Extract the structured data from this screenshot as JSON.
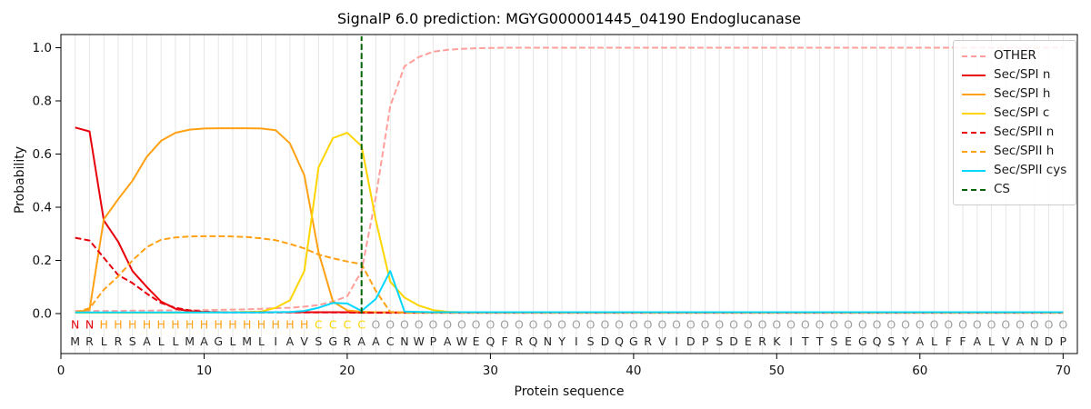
{
  "chart_data": {
    "type": "line",
    "title": "SignalP 6.0 prediction: MGYG000001445_04190 Endoglucanase",
    "xlabel": "Protein sequence",
    "ylabel": "Probability",
    "xlim": [
      0,
      71
    ],
    "ylim": [
      -0.15,
      1.05
    ],
    "x_ticks": [
      0,
      10,
      20,
      30,
      40,
      50,
      60,
      70
    ],
    "y_ticks": [
      0.0,
      0.2,
      0.4,
      0.6,
      0.8,
      1.0
    ],
    "grid": "vertical line at every residue position, light gray",
    "legend_position": "upper right",
    "series": [
      {
        "label": "OTHER",
        "color": "#ff9f9b",
        "style": "dashed",
        "values": [
          0.01,
          0.01,
          0.01,
          0.01,
          0.011,
          0.011,
          0.012,
          0.012,
          0.013,
          0.013,
          0.014,
          0.015,
          0.016,
          0.018,
          0.02,
          0.022,
          0.026,
          0.032,
          0.045,
          0.065,
          0.16,
          0.44,
          0.78,
          0.93,
          0.965,
          0.985,
          0.992,
          0.996,
          0.998,
          0.999,
          1.0,
          1.0,
          1.0,
          1.0,
          1.0,
          1.0,
          1.0,
          1.0,
          1.0,
          1.0,
          1.0,
          1.0,
          1.0,
          1.0,
          1.0,
          1.0,
          1.0,
          1.0,
          1.0,
          1.0,
          1.0,
          1.0,
          1.0,
          1.0,
          1.0,
          1.0,
          1.0,
          1.0,
          1.0,
          1.0,
          1.0,
          1.0,
          1.0,
          1.0,
          1.0,
          1.0,
          1.0,
          1.0,
          1.0,
          1.0
        ]
      },
      {
        "label": "Sec/SPI n",
        "color": "#e8000b",
        "style": "solid",
        "values": [
          0.7,
          0.685,
          0.35,
          0.27,
          0.16,
          0.1,
          0.045,
          0.018,
          0.009,
          0.006,
          0.005,
          0.005,
          0.005,
          0.005,
          0.005,
          0.005,
          0.005,
          0.005,
          0.005,
          0.005,
          0.004,
          0.004,
          0.004,
          0.004,
          0.004,
          0.004,
          0.004,
          0.004,
          0.004,
          0.004,
          0.004,
          0.004,
          0.004,
          0.004,
          0.004,
          0.004,
          0.004,
          0.004,
          0.004,
          0.004,
          0.004,
          0.004,
          0.004,
          0.004,
          0.004,
          0.004,
          0.004,
          0.004,
          0.004,
          0.004,
          0.004,
          0.004,
          0.004,
          0.004,
          0.004,
          0.004,
          0.004,
          0.004,
          0.004,
          0.004,
          0.004,
          0.004,
          0.004,
          0.004,
          0.004,
          0.004,
          0.004,
          0.004,
          0.004,
          0.004
        ]
      },
      {
        "label": "Sec/SPI h",
        "color": "#ffa113",
        "style": "solid",
        "values": [
          0.004,
          0.015,
          0.355,
          0.43,
          0.5,
          0.59,
          0.65,
          0.68,
          0.692,
          0.696,
          0.697,
          0.697,
          0.697,
          0.696,
          0.69,
          0.64,
          0.52,
          0.23,
          0.045,
          0.012,
          0.007,
          0.005,
          0.004,
          0.004,
          0.004,
          0.004,
          0.004,
          0.004,
          0.004,
          0.004,
          0.004,
          0.004,
          0.004,
          0.004,
          0.004,
          0.004,
          0.004,
          0.004,
          0.004,
          0.004,
          0.004,
          0.004,
          0.004,
          0.004,
          0.004,
          0.004,
          0.004,
          0.004,
          0.004,
          0.004,
          0.004,
          0.004,
          0.004,
          0.004,
          0.004,
          0.004,
          0.004,
          0.004,
          0.004,
          0.004,
          0.004,
          0.004,
          0.004,
          0.004,
          0.004,
          0.004,
          0.004,
          0.004,
          0.004,
          0.004
        ]
      },
      {
        "label": "Sec/SPI c",
        "color": "#ffd500",
        "style": "solid",
        "values": [
          0.003,
          0.003,
          0.003,
          0.003,
          0.003,
          0.003,
          0.003,
          0.003,
          0.004,
          0.004,
          0.004,
          0.005,
          0.006,
          0.008,
          0.022,
          0.05,
          0.16,
          0.55,
          0.66,
          0.68,
          0.63,
          0.35,
          0.12,
          0.06,
          0.03,
          0.013,
          0.007,
          0.005,
          0.004,
          0.004,
          0.004,
          0.004,
          0.004,
          0.004,
          0.004,
          0.004,
          0.004,
          0.004,
          0.004,
          0.004,
          0.004,
          0.004,
          0.004,
          0.004,
          0.004,
          0.004,
          0.004,
          0.004,
          0.004,
          0.004,
          0.004,
          0.004,
          0.004,
          0.004,
          0.004,
          0.004,
          0.004,
          0.004,
          0.004,
          0.004,
          0.004,
          0.004,
          0.004,
          0.004,
          0.004,
          0.004,
          0.004,
          0.004,
          0.004,
          0.004
        ]
      },
      {
        "label": "Sec/SPII n",
        "color": "#e8000b",
        "style": "dashed",
        "values": [
          0.285,
          0.275,
          0.21,
          0.145,
          0.115,
          0.075,
          0.04,
          0.022,
          0.012,
          0.007,
          0.005,
          0.004,
          0.004,
          0.004,
          0.004,
          0.004,
          0.004,
          0.004,
          0.004,
          0.004,
          0.003,
          0.003,
          0.003,
          0.003,
          0.003,
          0.003,
          0.003,
          0.003,
          0.003,
          0.003,
          0.003,
          0.003,
          0.003,
          0.003,
          0.003,
          0.003,
          0.003,
          0.003,
          0.003,
          0.003,
          0.003,
          0.003,
          0.003,
          0.003,
          0.003,
          0.003,
          0.003,
          0.003,
          0.003,
          0.003,
          0.003,
          0.003,
          0.003,
          0.003,
          0.003,
          0.003,
          0.003,
          0.003,
          0.003,
          0.003,
          0.003,
          0.003,
          0.003,
          0.003,
          0.003,
          0.003,
          0.003,
          0.003,
          0.003,
          0.003
        ]
      },
      {
        "label": "Sec/SPII h",
        "color": "#ffa113",
        "style": "dashed",
        "values": [
          0.004,
          0.02,
          0.09,
          0.14,
          0.2,
          0.25,
          0.278,
          0.286,
          0.29,
          0.291,
          0.291,
          0.29,
          0.288,
          0.283,
          0.276,
          0.262,
          0.245,
          0.222,
          0.208,
          0.196,
          0.186,
          0.085,
          0.006,
          0.003,
          0.003,
          0.003,
          0.003,
          0.003,
          0.003,
          0.003,
          0.003,
          0.003,
          0.003,
          0.003,
          0.003,
          0.003,
          0.003,
          0.003,
          0.003,
          0.003,
          0.003,
          0.003,
          0.003,
          0.003,
          0.003,
          0.003,
          0.003,
          0.003,
          0.003,
          0.003,
          0.003,
          0.003,
          0.003,
          0.003,
          0.003,
          0.003,
          0.003,
          0.003,
          0.003,
          0.003,
          0.003,
          0.003,
          0.003,
          0.003,
          0.003,
          0.003,
          0.003,
          0.003,
          0.003,
          0.003
        ]
      },
      {
        "label": "Sec/SPII cys",
        "color": "#00d7ff",
        "style": "solid",
        "values": [
          0.004,
          0.004,
          0.004,
          0.004,
          0.004,
          0.004,
          0.004,
          0.004,
          0.004,
          0.004,
          0.004,
          0.004,
          0.004,
          0.004,
          0.005,
          0.006,
          0.01,
          0.022,
          0.04,
          0.038,
          0.01,
          0.055,
          0.16,
          0.008,
          0.006,
          0.005,
          0.005,
          0.005,
          0.005,
          0.005,
          0.005,
          0.005,
          0.005,
          0.005,
          0.005,
          0.005,
          0.005,
          0.005,
          0.005,
          0.005,
          0.005,
          0.005,
          0.005,
          0.005,
          0.005,
          0.005,
          0.005,
          0.005,
          0.005,
          0.005,
          0.005,
          0.005,
          0.005,
          0.005,
          0.005,
          0.005,
          0.005,
          0.005,
          0.005,
          0.005,
          0.005,
          0.005,
          0.005,
          0.005,
          0.005,
          0.005,
          0.005,
          0.005,
          0.005,
          0.005
        ]
      }
    ],
    "cs_line": {
      "label": "CS",
      "x": 21,
      "color": "#046407",
      "style": "dashed"
    },
    "legend": [
      {
        "label": "OTHER",
        "color": "#ff9f9b",
        "style": "dashed"
      },
      {
        "label": "Sec/SPI n",
        "color": "#e8000b",
        "style": "solid"
      },
      {
        "label": "Sec/SPI h",
        "color": "#ffa113",
        "style": "solid"
      },
      {
        "label": "Sec/SPI c",
        "color": "#ffd500",
        "style": "solid"
      },
      {
        "label": "Sec/SPII n",
        "color": "#e8000b",
        "style": "dashed"
      },
      {
        "label": "Sec/SPII h",
        "color": "#ffa113",
        "style": "dashed"
      },
      {
        "label": "Sec/SPII cys",
        "color": "#00d7ff",
        "style": "solid"
      },
      {
        "label": "CS",
        "color": "#046407",
        "style": "dashed"
      }
    ],
    "sequence": [
      "M",
      "R",
      "L",
      "R",
      "S",
      "A",
      "L",
      "L",
      "M",
      "A",
      "G",
      "L",
      "M",
      "L",
      "I",
      "A",
      "V",
      "S",
      "G",
      "R",
      "A",
      "A",
      "C",
      "N",
      "W",
      "P",
      "A",
      "W",
      "E",
      "Q",
      "F",
      "R",
      "Q",
      "N",
      "Y",
      "I",
      "S",
      "D",
      "Q",
      "G",
      "R",
      "V",
      "I",
      "D",
      "P",
      "S",
      "D",
      "E",
      "R",
      "K",
      "I",
      "T",
      "T",
      "S",
      "E",
      "G",
      "Q",
      "S",
      "Y",
      "A",
      "L",
      "F",
      "F",
      "A",
      "L",
      "V",
      "A",
      "N",
      "D",
      "P"
    ],
    "region_labels": [
      "N",
      "N",
      "H",
      "H",
      "H",
      "H",
      "H",
      "H",
      "H",
      "H",
      "H",
      "H",
      "H",
      "H",
      "H",
      "H",
      "H",
      "C",
      "C",
      "C",
      "C",
      "O",
      "O",
      "O",
      "O",
      "O",
      "O",
      "O",
      "O",
      "O",
      "O",
      "O",
      "O",
      "O",
      "O",
      "O",
      "O",
      "O",
      "O",
      "O",
      "O",
      "O",
      "O",
      "O",
      "O",
      "O",
      "O",
      "O",
      "O",
      "O",
      "O",
      "O",
      "O",
      "O",
      "O",
      "O",
      "O",
      "O",
      "O",
      "O",
      "O",
      "O",
      "O",
      "O",
      "O",
      "O",
      "O",
      "O",
      "O",
      "O"
    ],
    "region_colors": {
      "N": "#e8000b",
      "H": "#ffa113",
      "C": "#ffd500",
      "O": "#a0a0a0"
    },
    "sequence_color": "#262626"
  }
}
